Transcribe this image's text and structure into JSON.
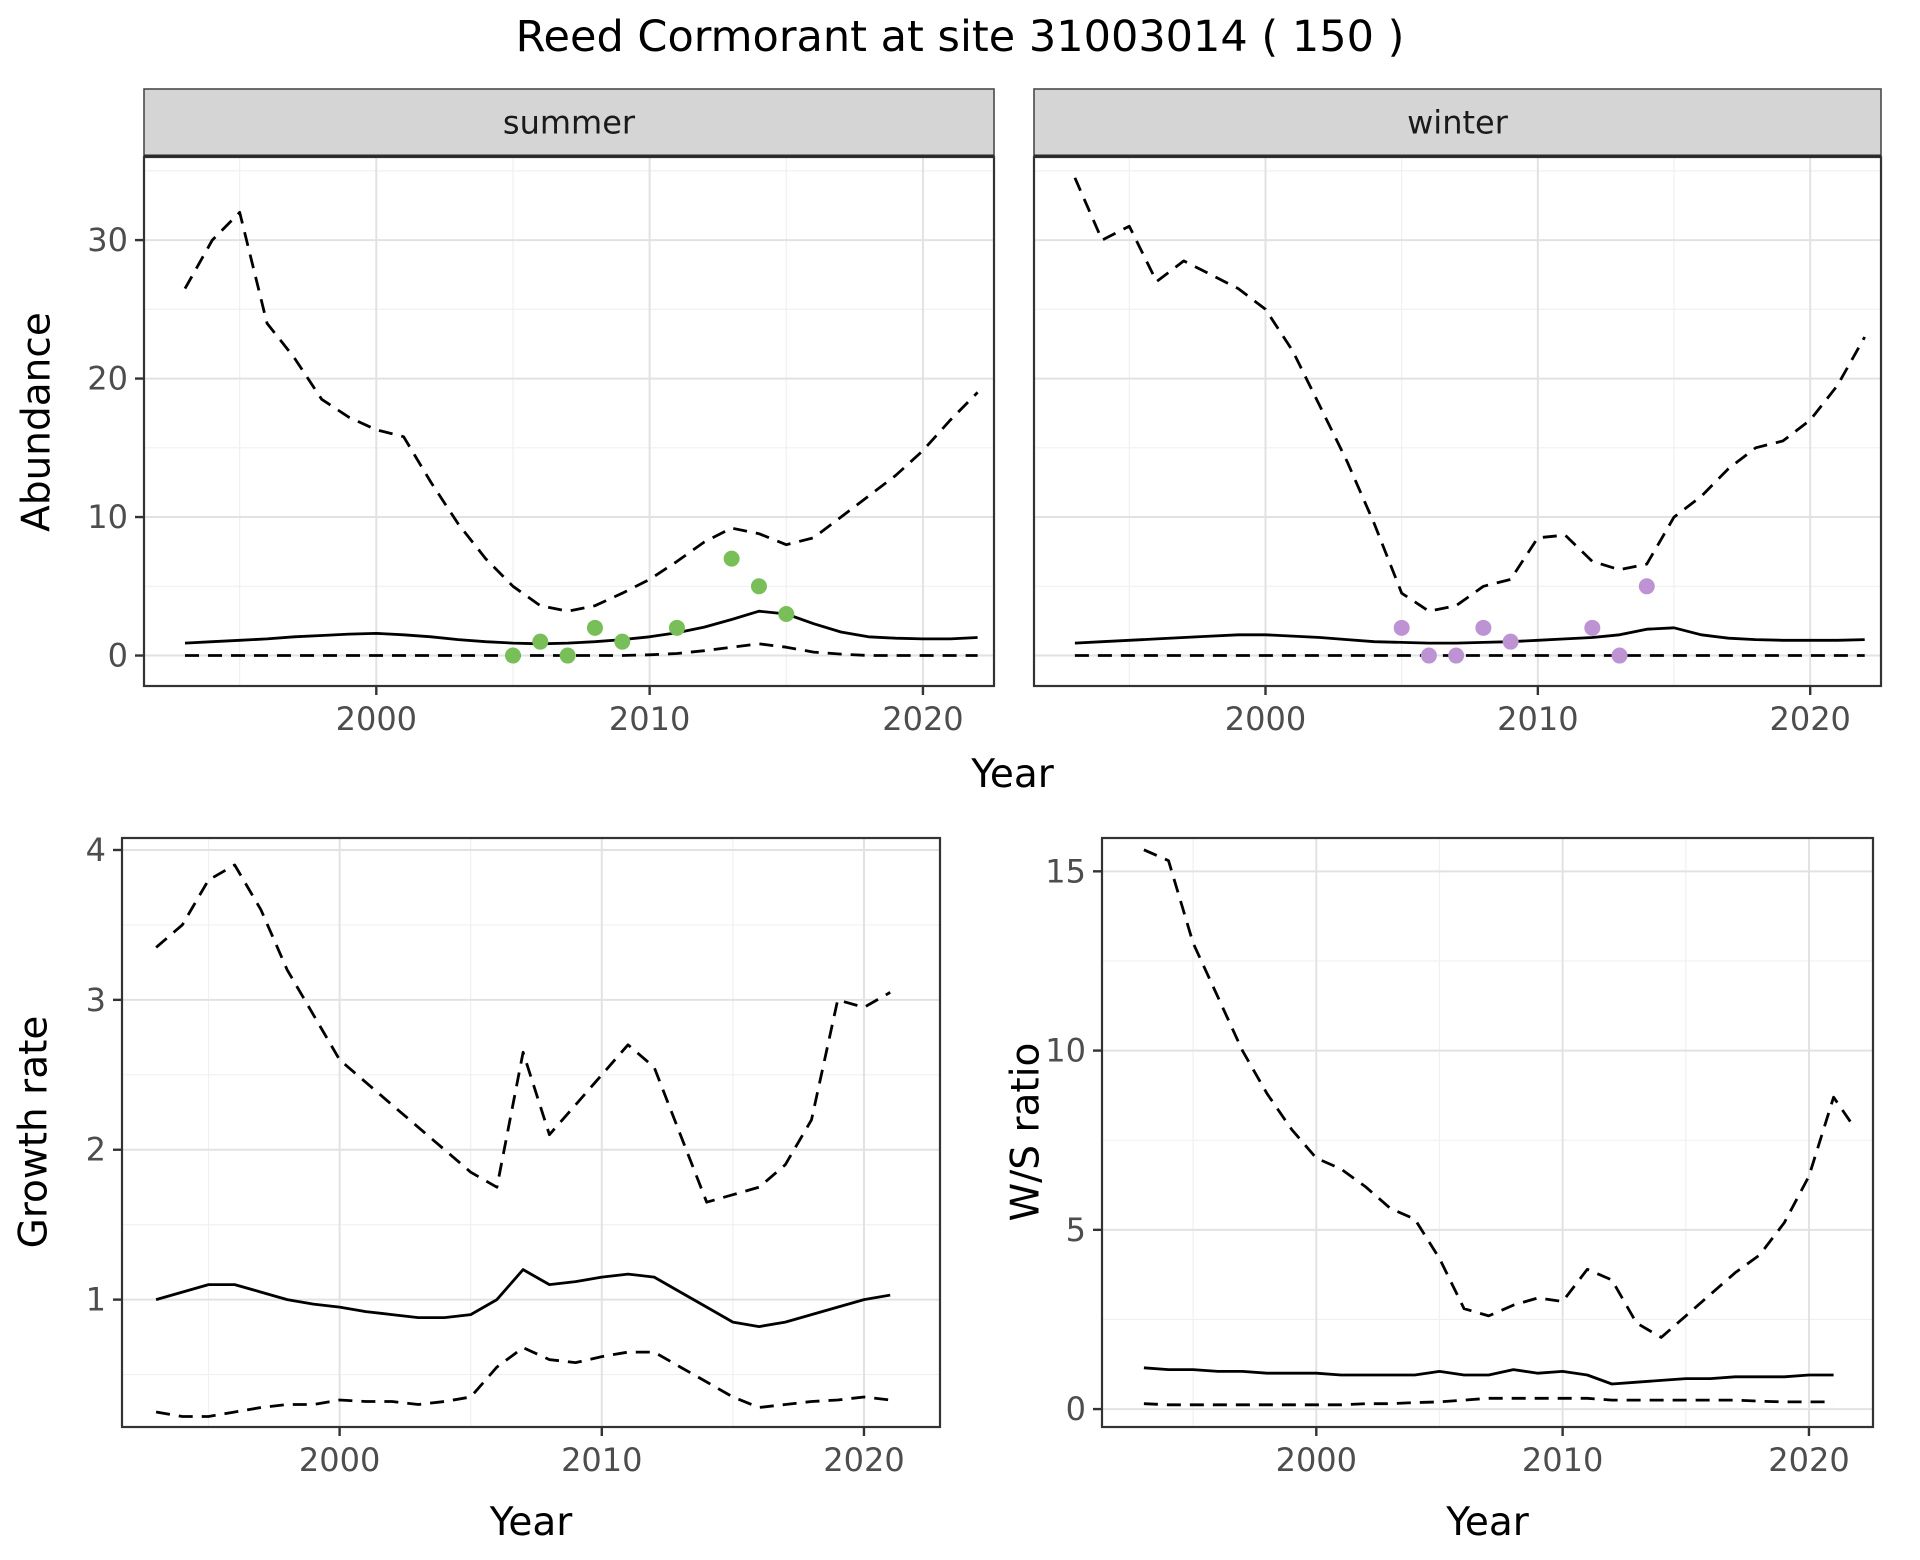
{
  "title": "Reed Cormorant at site 31003014 ( 150 )",
  "colors": {
    "summer_points": "#78be59",
    "winter_points": "#bd93d4",
    "line": "#000000",
    "grid_major": "#e2e2e2",
    "grid_minor": "#f0f0f0",
    "panel_border": "#333333",
    "strip_bg": "#d5d5d5",
    "strip_text": "#1a1a1a",
    "tick_label": "#4d4d4d"
  },
  "chart_data": [
    {
      "type": "line",
      "facet": "summer",
      "xlabel": "Year",
      "ylabel": "Abundance",
      "xlim": [
        1991.5,
        2022.6
      ],
      "ylim": [
        -2.2,
        36
      ],
      "xticks": [
        2000,
        2010,
        2020
      ],
      "yticks": [
        0,
        10,
        20,
        30
      ],
      "show_y_labels": true,
      "grid": true,
      "legend": "none",
      "series": [
        {
          "name": "upper_ci",
          "style": "dashed",
          "x_start": 1993,
          "y": [
            26.5,
            30,
            32,
            24,
            21.5,
            18.5,
            17.2,
            16.3,
            15.8,
            12.5,
            9.5,
            7,
            5,
            3.6,
            3.2,
            3.6,
            4.5,
            5.5,
            6.8,
            8.2,
            9.2,
            8.8,
            8,
            8.5,
            10,
            11.5,
            13,
            14.8,
            17,
            19
          ]
        },
        {
          "name": "median",
          "style": "solid",
          "x_start": 1993,
          "y": [
            0.9,
            1,
            1.1,
            1.2,
            1.35,
            1.45,
            1.55,
            1.6,
            1.5,
            1.35,
            1.15,
            1,
            0.9,
            0.85,
            0.9,
            1,
            1.15,
            1.35,
            1.65,
            2.05,
            2.6,
            3.2,
            3,
            2.3,
            1.7,
            1.35,
            1.25,
            1.2,
            1.2,
            1.3
          ]
        },
        {
          "name": "lower_ci",
          "style": "dashed",
          "x_start": 1993,
          "y": [
            0,
            0,
            0,
            0,
            0,
            0,
            0,
            0,
            0,
            0,
            0,
            0,
            0,
            0,
            0,
            0,
            0,
            0.05,
            0.15,
            0.35,
            0.6,
            0.85,
            0.6,
            0.25,
            0.1,
            0,
            0,
            0,
            0,
            0
          ]
        }
      ],
      "points": {
        "name": "observed-counts-summer",
        "color": "#78be59",
        "x": [
          2005,
          2006,
          2007,
          2008,
          2009,
          2011,
          2013,
          2014,
          2015
        ],
        "y": [
          0,
          1,
          0,
          2,
          1,
          2,
          7,
          5,
          3
        ]
      }
    },
    {
      "type": "line",
      "facet": "winter",
      "xlabel": "Year",
      "ylabel": "Abundance",
      "xlim": [
        1991.5,
        2022.6
      ],
      "ylim": [
        -2.2,
        36
      ],
      "xticks": [
        2000,
        2010,
        2020
      ],
      "yticks": [
        0,
        10,
        20,
        30
      ],
      "show_y_labels": false,
      "grid": true,
      "legend": "none",
      "series": [
        {
          "name": "upper_ci",
          "style": "dashed",
          "x_start": 1993,
          "y": [
            34.5,
            30,
            31,
            27,
            28.5,
            27.5,
            26.5,
            25,
            22,
            18,
            14,
            9.5,
            4.5,
            3.2,
            3.6,
            5,
            5.5,
            8.5,
            8.7,
            6.8,
            6.2,
            6.6,
            10,
            11.5,
            13.5,
            15,
            15.5,
            17,
            19.5,
            23
          ]
        },
        {
          "name": "median",
          "style": "solid",
          "x_start": 1993,
          "y": [
            0.9,
            1,
            1.1,
            1.2,
            1.3,
            1.4,
            1.5,
            1.5,
            1.4,
            1.3,
            1.15,
            1,
            0.95,
            0.9,
            0.9,
            0.95,
            1,
            1.1,
            1.2,
            1.3,
            1.5,
            1.9,
            2,
            1.5,
            1.25,
            1.15,
            1.1,
            1.1,
            1.1,
            1.15
          ]
        },
        {
          "name": "lower_ci",
          "style": "dashed",
          "x_start": 1993,
          "y": [
            0,
            0,
            0,
            0,
            0,
            0,
            0,
            0,
            0,
            0,
            0,
            0,
            0,
            0,
            0,
            0,
            0,
            0,
            0,
            0,
            0,
            0,
            0,
            0,
            0,
            0,
            0,
            0,
            0,
            0
          ]
        }
      ],
      "points": {
        "name": "observed-counts-winter",
        "color": "#bd93d4",
        "x": [
          2005,
          2006,
          2007,
          2008,
          2009,
          2012,
          2013,
          2014
        ],
        "y": [
          2,
          0,
          0,
          2,
          1,
          2,
          0,
          5
        ]
      }
    },
    {
      "type": "line",
      "facet": null,
      "xlabel": "Year",
      "ylabel": "Growth rate",
      "xlim": [
        1991.7,
        2022.9
      ],
      "ylim": [
        0.15,
        4.08
      ],
      "xticks": [
        2000,
        2010,
        2020
      ],
      "yticks": [
        1,
        2,
        3,
        4
      ],
      "show_y_labels": true,
      "grid": true,
      "legend": "none",
      "series": [
        {
          "name": "upper_ci",
          "style": "dashed",
          "x_start": 1993,
          "y": [
            3.35,
            3.5,
            3.8,
            3.9,
            3.6,
            3.2,
            2.9,
            2.6,
            2.45,
            2.3,
            2.15,
            2,
            1.85,
            1.75,
            2.65,
            2.1,
            2.3,
            2.5,
            2.7,
            2.55,
            2.1,
            1.65,
            1.7,
            1.75,
            1.9,
            2.2,
            3,
            2.95,
            3.05
          ]
        },
        {
          "name": "median",
          "style": "solid",
          "x_start": 1993,
          "y": [
            1,
            1.05,
            1.1,
            1.1,
            1.05,
            1,
            0.97,
            0.95,
            0.92,
            0.9,
            0.88,
            0.88,
            0.9,
            1,
            1.2,
            1.1,
            1.12,
            1.15,
            1.17,
            1.15,
            1.05,
            0.95,
            0.85,
            0.82,
            0.85,
            0.9,
            0.95,
            1,
            1.03
          ]
        },
        {
          "name": "lower_ci",
          "style": "dashed",
          "x_start": 1993,
          "y": [
            0.25,
            0.22,
            0.22,
            0.25,
            0.28,
            0.3,
            0.3,
            0.33,
            0.32,
            0.32,
            0.3,
            0.32,
            0.35,
            0.55,
            0.68,
            0.6,
            0.58,
            0.62,
            0.65,
            0.65,
            0.55,
            0.45,
            0.35,
            0.28,
            0.3,
            0.32,
            0.33,
            0.35,
            0.33
          ]
        }
      ]
    },
    {
      "type": "line",
      "facet": null,
      "xlabel": "Year",
      "ylabel": "W/S ratio",
      "xlim": [
        1991.3,
        2022.6
      ],
      "ylim": [
        -0.5,
        15.93
      ],
      "xticks": [
        2000,
        2010,
        2020
      ],
      "yticks": [
        0,
        5,
        10,
        15
      ],
      "show_y_labels": true,
      "grid": true,
      "legend": "none",
      "series": [
        {
          "name": "upper_ci",
          "style": "dashed",
          "x": [
            1993,
            1994,
            1995,
            1996,
            1997,
            1998,
            1999,
            2000,
            2001,
            2002,
            2003,
            2004,
            2005,
            2006,
            2007,
            2008,
            2009,
            2010,
            2011,
            2012,
            2013,
            2014,
            2015,
            2016,
            2017,
            2018,
            2019,
            2020,
            2021,
            2021.7
          ],
          "y": [
            15.6,
            15.3,
            13,
            11.5,
            10,
            8.8,
            7.8,
            7,
            6.7,
            6.2,
            5.6,
            5.3,
            4.2,
            2.8,
            2.6,
            2.9,
            3.1,
            3,
            3.9,
            3.6,
            2.4,
            2,
            2.6,
            3.2,
            3.8,
            4.3,
            5.2,
            6.5,
            8.7,
            8
          ]
        },
        {
          "name": "median",
          "style": "solid",
          "x_start": 1993,
          "y": [
            1.15,
            1.1,
            1.1,
            1.05,
            1.05,
            1,
            1,
            1,
            0.95,
            0.95,
            0.95,
            0.95,
            1.05,
            0.95,
            0.95,
            1.1,
            1,
            1.05,
            0.95,
            0.7,
            0.75,
            0.8,
            0.85,
            0.85,
            0.9,
            0.9,
            0.9,
            0.95,
            0.95
          ]
        },
        {
          "name": "lower_ci",
          "style": "dashed",
          "x_start": 1993,
          "y": [
            0.15,
            0.12,
            0.12,
            0.12,
            0.12,
            0.12,
            0.12,
            0.12,
            0.12,
            0.15,
            0.15,
            0.18,
            0.2,
            0.25,
            0.3,
            0.3,
            0.3,
            0.3,
            0.3,
            0.25,
            0.25,
            0.25,
            0.25,
            0.25,
            0.25,
            0.22,
            0.2,
            0.2,
            0.2
          ]
        }
      ]
    }
  ]
}
